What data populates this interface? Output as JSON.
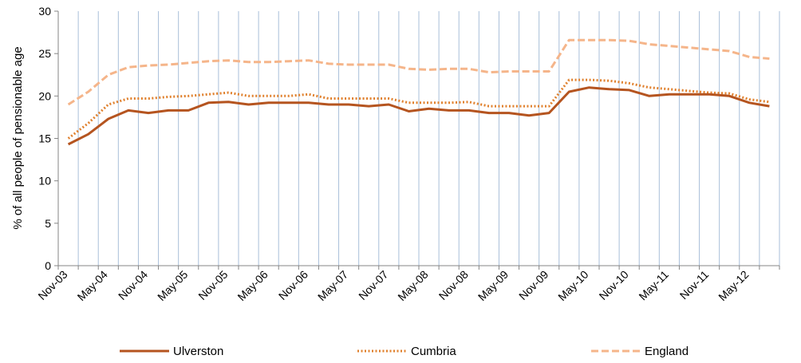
{
  "chart_data": {
    "type": "line",
    "title": "",
    "xlabel": "",
    "ylabel": "% of all people of pensionable age",
    "ylim": [
      0,
      30
    ],
    "yticks": [
      0,
      5,
      10,
      15,
      20,
      25,
      30
    ],
    "vertical_gridlines": true,
    "legend_position": "bottom",
    "x": [
      "Nov-03",
      "Feb-04",
      "May-04",
      "Aug-04",
      "Nov-04",
      "Feb-05",
      "May-05",
      "Aug-05",
      "Nov-05",
      "Feb-06",
      "May-06",
      "Aug-06",
      "Nov-06",
      "Feb-07",
      "May-07",
      "Aug-07",
      "Nov-07",
      "Feb-08",
      "May-08",
      "Aug-08",
      "Nov-08",
      "Feb-09",
      "May-09",
      "Aug-09",
      "Nov-09",
      "Feb-10",
      "May-10",
      "Aug-10",
      "Nov-10",
      "Feb-11",
      "May-11",
      "Aug-11",
      "Nov-11",
      "Feb-12",
      "May-12",
      "Aug-12"
    ],
    "x_tick_labels": [
      "Nov-03",
      "May-04",
      "Nov-04",
      "May-05",
      "Nov-05",
      "May-06",
      "Nov-06",
      "May-07",
      "Nov-07",
      "May-08",
      "Nov-08",
      "May-09",
      "Nov-09",
      "May-10",
      "Nov-10",
      "May-11",
      "Nov-11",
      "May-12"
    ],
    "series": [
      {
        "name": "Ulverston",
        "color": "#b5541f",
        "style": "solid",
        "values": [
          14.3,
          15.5,
          17.3,
          18.3,
          18.0,
          18.3,
          18.3,
          19.2,
          19.3,
          19.0,
          19.2,
          19.2,
          19.2,
          19.0,
          19.0,
          18.8,
          19.0,
          18.2,
          18.5,
          18.3,
          18.3,
          18.0,
          18.0,
          17.7,
          18.0,
          20.5,
          21.0,
          20.8,
          20.7,
          20.0,
          20.2,
          20.2,
          20.2,
          20.0,
          19.2,
          18.8
        ]
      },
      {
        "name": "Cumbria",
        "color": "#e0812e",
        "style": "dotted",
        "values": [
          15.0,
          16.8,
          19.0,
          19.7,
          19.7,
          19.9,
          20.0,
          20.2,
          20.4,
          20.0,
          20.0,
          20.0,
          20.2,
          19.7,
          19.7,
          19.7,
          19.7,
          19.2,
          19.2,
          19.2,
          19.3,
          18.8,
          18.8,
          18.8,
          18.8,
          21.9,
          21.9,
          21.8,
          21.5,
          21.0,
          20.8,
          20.6,
          20.4,
          20.3,
          19.6,
          19.3
        ]
      },
      {
        "name": "England",
        "color": "#f5b58a",
        "style": "dashed",
        "values": [
          19.0,
          20.5,
          22.5,
          23.4,
          23.6,
          23.7,
          23.9,
          24.1,
          24.2,
          24.0,
          24.0,
          24.1,
          24.2,
          23.8,
          23.7,
          23.7,
          23.7,
          23.2,
          23.1,
          23.2,
          23.2,
          22.8,
          22.9,
          22.9,
          22.9,
          26.6,
          26.6,
          26.6,
          26.5,
          26.1,
          25.9,
          25.7,
          25.5,
          25.3,
          24.6,
          24.4
        ]
      }
    ]
  }
}
